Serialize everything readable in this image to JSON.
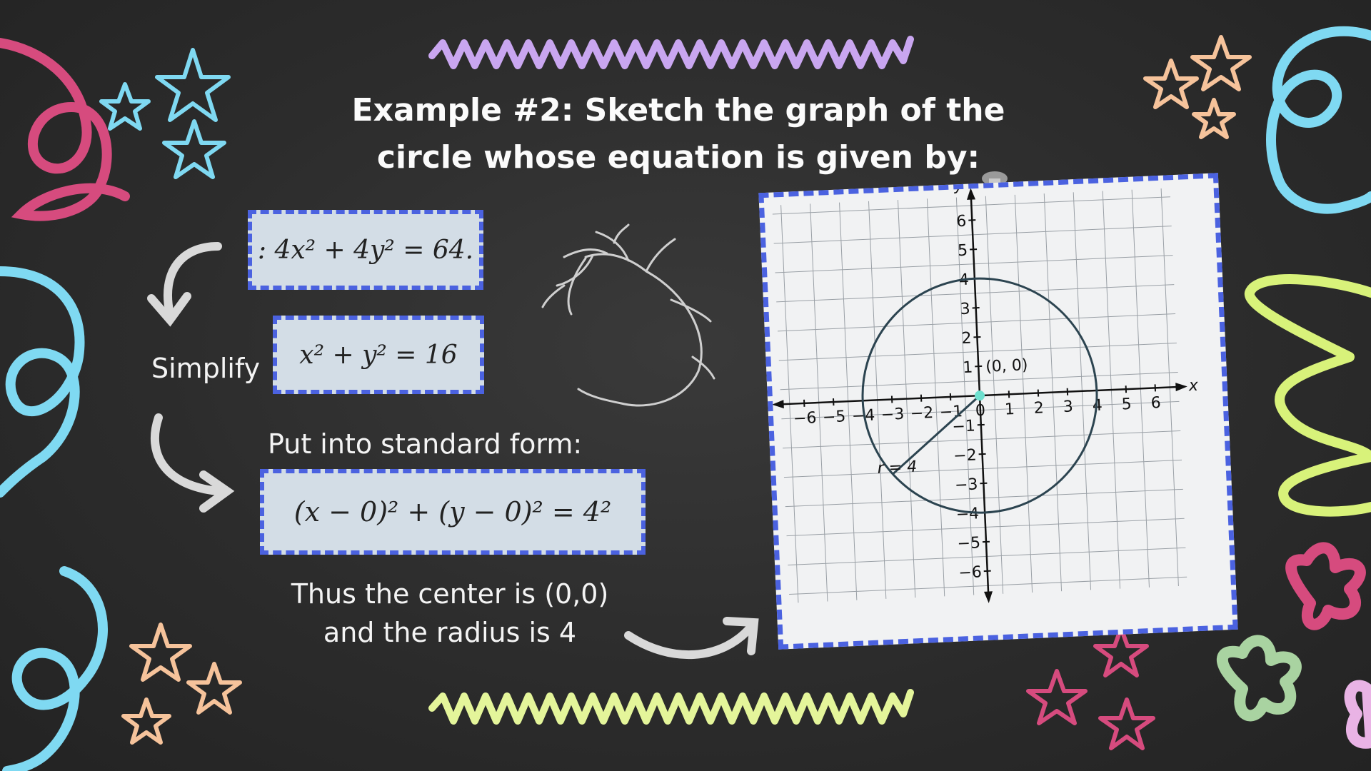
{
  "title_line1": "Example #2: Sketch the graph of the",
  "title_line2": "circle whose equation is given by:",
  "eq1": ": 4x² + 4y² = 64.",
  "eq2": "x² + y² = 16",
  "simplify_label": "Simplify",
  "standard_form_label": "Put into standard form:",
  "eq3": "(x − 0)² + (y − 0)² = 4²",
  "conclusion_line1": "Thus the center is (0,0)",
  "conclusion_line2": "and the radius is 4",
  "chart_data": {
    "type": "scatter",
    "xlabel": "x",
    "ylabel": "y",
    "xlim": [
      -6,
      6
    ],
    "ylim": [
      -6,
      6
    ],
    "x_ticks": [
      "−6",
      "−5",
      "−4",
      "−3",
      "−2",
      "−1",
      "0",
      "1",
      "2",
      "3",
      "4",
      "5",
      "6"
    ],
    "y_ticks": [
      "6",
      "5",
      "4",
      "3",
      "2",
      "1",
      "−1",
      "−2",
      "−3",
      "−4",
      "−5",
      "−6"
    ],
    "grid": true,
    "center_label": "(0, 0)",
    "radius_label": "r = 4",
    "center": [
      0,
      0
    ],
    "radius": 4
  },
  "colors": {
    "box_border": "#4b62e0",
    "box_fill": "#d3dde6",
    "center_point": "#6ee0cf",
    "circle": "#2c4450"
  }
}
